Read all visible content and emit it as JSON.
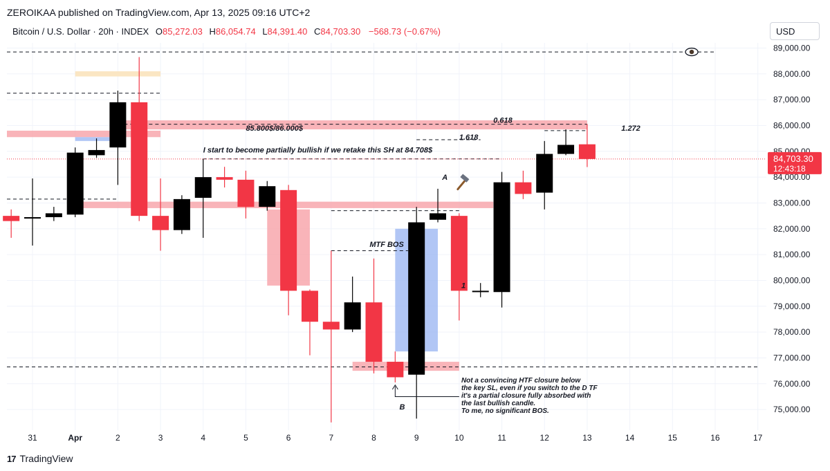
{
  "header": {
    "published": "ZEROIKAA published on TradingView.com, Apr 13, 2025 09:16 UTC+2",
    "symbol": "Bitcoin / U.S. Dollar · 20h · INDEX",
    "open_label": "O",
    "open": "85,272.03",
    "high_label": "H",
    "high": "86,054.74",
    "low_label": "L",
    "low": "84,391.40",
    "close_label": "C",
    "close": "84,703.30",
    "change": "−568.73 (−0.67%)"
  },
  "currency": "USD",
  "footer": {
    "brand": "TradingView",
    "brand_mark": "17"
  },
  "colors": {
    "up": "#000000",
    "down": "#f23645",
    "zone_red": "#f7a1a8",
    "zone_blue": "#9db8f2",
    "zone_orange": "#fbe3bd",
    "grid": "#f0f3fa"
  },
  "icons": {
    "eye": "eye-icon",
    "hammer": "hammer-icon"
  },
  "chart_data": {
    "type": "candlestick",
    "ylim": [
      74200,
      89200
    ],
    "xlim": [
      -0.6,
      17.2
    ],
    "y_ticks": [
      {
        "v": 75000,
        "label": "75,000.00"
      },
      {
        "v": 76000,
        "label": "76,000.00"
      },
      {
        "v": 77000,
        "label": "77,000.00"
      },
      {
        "v": 78000,
        "label": "78,000.00"
      },
      {
        "v": 79000,
        "label": "79,000.00"
      },
      {
        "v": 80000,
        "label": "80,000.00"
      },
      {
        "v": 81000,
        "label": "81,000.00"
      },
      {
        "v": 82000,
        "label": "82,000.00"
      },
      {
        "v": 83000,
        "label": "83,000.00"
      },
      {
        "v": 84000,
        "label": "84,000.00"
      },
      {
        "v": 85000,
        "label": "85,000.00"
      },
      {
        "v": 86000,
        "label": "86,000.00"
      },
      {
        "v": 87000,
        "label": "87,000.00"
      },
      {
        "v": 88000,
        "label": "88,000.00"
      },
      {
        "v": 89000,
        "label": "89,000.00"
      }
    ],
    "x_ticks": [
      {
        "x": 0,
        "label": "31"
      },
      {
        "x": 1,
        "label": "Apr"
      },
      {
        "x": 2,
        "label": "2"
      },
      {
        "x": 3,
        "label": "3"
      },
      {
        "x": 4,
        "label": "4"
      },
      {
        "x": 5,
        "label": "5"
      },
      {
        "x": 6,
        "label": "6"
      },
      {
        "x": 7,
        "label": "7"
      },
      {
        "x": 8,
        "label": "8"
      },
      {
        "x": 9,
        "label": "9"
      },
      {
        "x": 10,
        "label": "10"
      },
      {
        "x": 11,
        "label": "11"
      },
      {
        "x": 12,
        "label": "12"
      },
      {
        "x": 13,
        "label": "13"
      },
      {
        "x": 14,
        "label": "14"
      },
      {
        "x": 15,
        "label": "15"
      },
      {
        "x": 16,
        "label": "16"
      },
      {
        "x": 17,
        "label": "17"
      }
    ],
    "candles": [
      {
        "x": -0.5,
        "o": 82500,
        "h": 82750,
        "l": 81650,
        "c": 82300
      },
      {
        "x": 0.0,
        "o": 82400,
        "h": 83950,
        "l": 81350,
        "c": 82450
      },
      {
        "x": 0.5,
        "o": 82450,
        "h": 82850,
        "l": 82300,
        "c": 82600
      },
      {
        "x": 1.0,
        "o": 82550,
        "h": 85150,
        "l": 82450,
        "c": 84950
      },
      {
        "x": 1.5,
        "o": 84850,
        "h": 85500,
        "l": 84750,
        "c": 85050
      },
      {
        "x": 2.0,
        "o": 85150,
        "h": 87350,
        "l": 83700,
        "c": 86900
      },
      {
        "x": 2.5,
        "o": 86900,
        "h": 88650,
        "l": 82300,
        "c": 82500
      },
      {
        "x": 3.0,
        "o": 82500,
        "h": 83950,
        "l": 81150,
        "c": 81950
      },
      {
        "x": 3.5,
        "o": 81950,
        "h": 83300,
        "l": 81800,
        "c": 83150
      },
      {
        "x": 4.0,
        "o": 83200,
        "h": 84700,
        "l": 81650,
        "c": 84000
      },
      {
        "x": 4.5,
        "o": 84000,
        "h": 84400,
        "l": 83600,
        "c": 83900
      },
      {
        "x": 5.0,
        "o": 83900,
        "h": 84250,
        "l": 82400,
        "c": 82850
      },
      {
        "x": 5.5,
        "o": 82850,
        "h": 83850,
        "l": 82700,
        "c": 83650
      },
      {
        "x": 6.0,
        "o": 83500,
        "h": 83700,
        "l": 78650,
        "c": 79600
      },
      {
        "x": 6.5,
        "o": 79600,
        "h": 79650,
        "l": 77100,
        "c": 78400
      },
      {
        "x": 7.0,
        "o": 78400,
        "h": 81150,
        "l": 74500,
        "c": 78100
      },
      {
        "x": 7.5,
        "o": 78100,
        "h": 80150,
        "l": 78000,
        "c": 79150
      },
      {
        "x": 8.0,
        "o": 79150,
        "h": 80850,
        "l": 76400,
        "c": 76850
      },
      {
        "x": 8.5,
        "o": 76850,
        "h": 77250,
        "l": 76050,
        "c": 76250
      },
      {
        "x": 9.0,
        "o": 76350,
        "h": 82850,
        "l": 74650,
        "c": 82250
      },
      {
        "x": 9.5,
        "o": 82350,
        "h": 83550,
        "l": 82250,
        "c": 82600
      },
      {
        "x": 10.0,
        "o": 82500,
        "h": 82600,
        "l": 78450,
        "c": 79600
      },
      {
        "x": 10.5,
        "o": 79550,
        "h": 79900,
        "l": 79350,
        "c": 79600
      },
      {
        "x": 11.0,
        "o": 79550,
        "h": 84200,
        "l": 78950,
        "c": 83800
      },
      {
        "x": 11.5,
        "o": 83800,
        "h": 84250,
        "l": 83150,
        "c": 83350
      },
      {
        "x": 12.0,
        "o": 83400,
        "h": 85400,
        "l": 82750,
        "c": 84900
      },
      {
        "x": 12.5,
        "o": 84900,
        "h": 85850,
        "l": 84850,
        "c": 85250
      },
      {
        "x": 13.0,
        "o": 85272.03,
        "h": 86054.74,
        "l": 84391.4,
        "c": 84703.3
      }
    ],
    "zones": [
      {
        "color": "orange",
        "x0": 1.0,
        "x1": 3.0,
        "y0": 87900,
        "y1": 88100
      },
      {
        "color": "red",
        "x0": -0.6,
        "x1": 3.0,
        "y0": 85550,
        "y1": 85800
      },
      {
        "color": "blue",
        "x0": 1.0,
        "x1": 2.0,
        "y0": 85400,
        "y1": 85550
      },
      {
        "color": "red",
        "x0": 2.0,
        "x1": 13.0,
        "y0": 85850,
        "y1": 86200
      },
      {
        "color": "red",
        "x0": 1.0,
        "x1": 10.8,
        "y0": 82800,
        "y1": 83050
      },
      {
        "color": "red",
        "x0": 5.5,
        "x1": 6.5,
        "y0": 79800,
        "y1": 82750
      },
      {
        "color": "blue",
        "x0": 8.5,
        "x1": 9.5,
        "y0": 77250,
        "y1": 82000
      },
      {
        "color": "red",
        "x0": 7.5,
        "x1": 10.0,
        "y0": 76500,
        "y1": 76850
      }
    ],
    "dashed_lines": [
      {
        "x0": -0.6,
        "x1": 16.0,
        "y": 88850
      },
      {
        "x0": -0.6,
        "x1": 3.0,
        "y": 87250
      },
      {
        "x0": -0.6,
        "x1": 2.0,
        "y": 83150
      },
      {
        "x0": 2.0,
        "x1": 13.0,
        "y": 86050
      },
      {
        "x0": 12.0,
        "x1": 13.0,
        "y": 85800
      },
      {
        "x0": 9.0,
        "x1": 10.5,
        "y": 85450
      },
      {
        "x0": 4.0,
        "x1": 11.0,
        "y": 84708
      },
      {
        "x0": 7.0,
        "x1": 8.8,
        "y": 81150
      },
      {
        "x0": 7.0,
        "x1": 10.0,
        "y": 82700
      },
      {
        "x0": -0.6,
        "x1": 17.0,
        "y": 76650
      }
    ],
    "annotations": [
      {
        "text": "0.618",
        "x": 10.8,
        "y": 86100
      },
      {
        "text": "1.618",
        "x": 10.0,
        "y": 85450
      },
      {
        "text": "1.272",
        "x": 13.8,
        "y": 85800
      },
      {
        "text": "85.800$/86.000$",
        "x": 5.0,
        "y": 85800
      },
      {
        "text": "I start to become partially bullish if we retake this SH at 84.708$",
        "x": 4.0,
        "y": 84950
      },
      {
        "text": "MTF BOS",
        "x": 7.9,
        "y": 81300
      },
      {
        "text": "A",
        "x": 9.6,
        "y": 83900
      },
      {
        "text": "1",
        "x": 10.05,
        "y": 79700
      },
      {
        "text": "B",
        "x": 8.6,
        "y": 75000
      }
    ],
    "note_lines": [
      "Not a convincing HTF closure below",
      "the key SL, even if you switch to the D TF",
      "it's a partial closure fully absorbed with",
      "the last bullish candle.",
      "To me, no significant BOS."
    ],
    "last_price": {
      "v": 84703.3,
      "label": "84,703.30",
      "timer": "12:43:18"
    },
    "grid": true
  }
}
